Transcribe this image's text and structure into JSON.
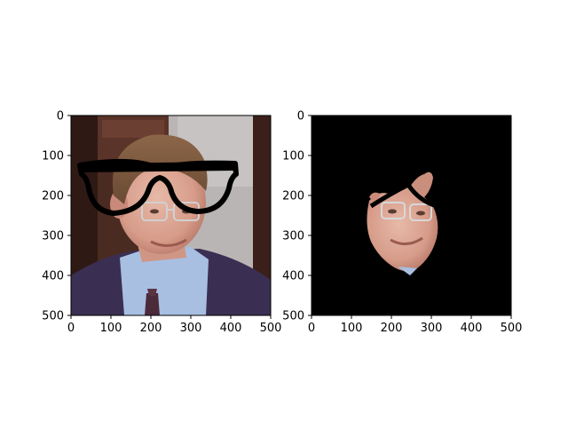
{
  "colors": {
    "background": "#ffffff",
    "axes_frame": "#000000",
    "mask_background": "#000000"
  },
  "panels": [
    {
      "name": "face-with-glasses",
      "xticks": [
        "0",
        "100",
        "200",
        "300",
        "400",
        "500"
      ],
      "yticks": [
        "0",
        "100",
        "200",
        "300",
        "400",
        "500"
      ],
      "x_range": [
        0,
        500
      ],
      "y_range": [
        500,
        0
      ]
    },
    {
      "name": "masked-face",
      "xticks": [
        "0",
        "100",
        "200",
        "300",
        "400",
        "500"
      ],
      "yticks": [
        "0",
        "100",
        "200",
        "300",
        "400",
        "500"
      ],
      "x_range": [
        0,
        500
      ],
      "y_range": [
        500,
        0
      ]
    }
  ]
}
